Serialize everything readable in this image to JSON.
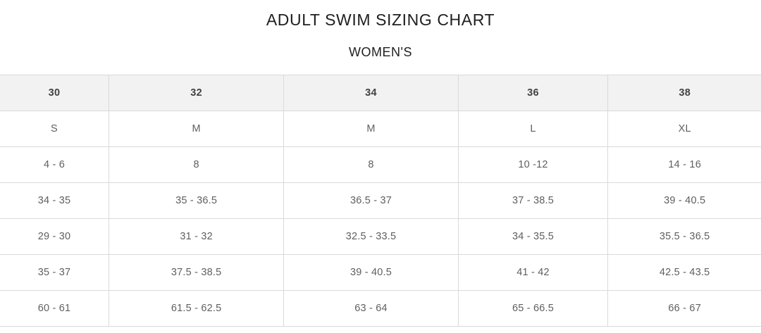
{
  "page": {
    "title": "ADULT SWIM SIZING CHART",
    "subtitle": "WOMEN'S"
  },
  "table": {
    "headers": [
      "30",
      "32",
      "34",
      "36",
      "38"
    ],
    "rows": [
      [
        "S",
        "M",
        "M",
        "L",
        "XL"
      ],
      [
        "4 - 6",
        "8",
        "8",
        "10 -12",
        "14 - 16"
      ],
      [
        "34 - 35",
        "35 - 36.5",
        "36.5 - 37",
        "37 - 38.5",
        "39 - 40.5"
      ],
      [
        "29 - 30",
        "31 - 32",
        "32.5 - 33.5",
        "34 - 35.5",
        "35.5 - 36.5"
      ],
      [
        "35 - 37",
        "37.5 - 38.5",
        "39 - 40.5",
        "41 - 42",
        "42.5 - 43.5"
      ],
      [
        "60 - 61",
        "61.5 - 62.5",
        "63 - 64",
        "65 - 66.5",
        "66 - 67"
      ]
    ]
  },
  "colors": {
    "header_bg": "#f2f2f2",
    "border": "#dadada",
    "header_text": "#424242",
    "cell_text": "#5f5f5f",
    "title_text": "#1f1f1f"
  }
}
